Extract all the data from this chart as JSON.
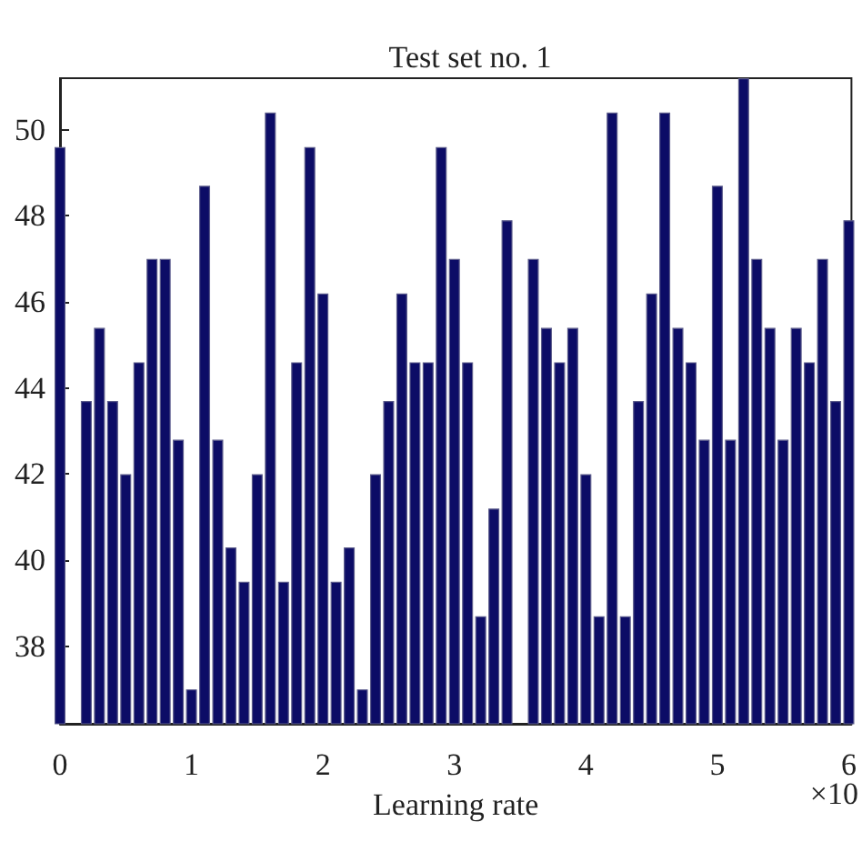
{
  "chart_data": {
    "type": "bar",
    "title": "Test set no. 1",
    "xlabel": "Learning rate",
    "annotations": [
      "×10"
    ],
    "x": [
      0,
      0.1,
      0.2,
      0.3,
      0.4,
      0.5,
      0.6,
      0.7,
      0.8,
      0.9,
      1.0,
      1.1,
      1.2,
      1.3,
      1.4,
      1.5,
      1.6,
      1.7,
      1.8,
      1.9,
      2.0,
      2.1,
      2.2,
      2.3,
      2.4,
      2.5,
      2.6,
      2.7,
      2.8,
      2.9,
      3.0,
      3.1,
      3.2,
      3.3,
      3.4,
      3.5,
      3.6,
      3.7,
      3.8,
      3.9,
      4.0,
      4.1,
      4.2,
      4.3,
      4.4,
      4.5,
      4.6,
      4.7,
      4.8,
      4.9,
      5.0,
      5.1,
      5.2,
      5.3,
      5.4,
      5.5,
      5.6,
      5.7,
      5.8,
      5.9,
      6.0
    ],
    "values": [
      49.6,
      null,
      43.7,
      45.4,
      43.7,
      42.0,
      44.6,
      47.0,
      47.0,
      42.8,
      37.0,
      48.7,
      42.8,
      40.3,
      39.5,
      42.0,
      50.4,
      39.5,
      44.6,
      49.6,
      46.2,
      39.5,
      40.3,
      37.0,
      42.0,
      43.7,
      46.2,
      44.6,
      44.6,
      49.6,
      47.0,
      44.6,
      38.7,
      41.2,
      47.9,
      null,
      47.0,
      45.4,
      44.6,
      45.4,
      42.0,
      38.7,
      50.4,
      38.7,
      43.7,
      46.2,
      50.4,
      45.4,
      44.6,
      42.8,
      48.7,
      42.8,
      51.2,
      47.0,
      45.4,
      42.8,
      45.4,
      44.6,
      47.0,
      43.7,
      47.9
    ],
    "color": "#0c0c66",
    "xlim": [
      0,
      6.02
    ],
    "xticks": [
      0,
      1,
      2,
      3,
      4,
      5,
      6
    ],
    "ylim": [
      36.2,
      51.2
    ],
    "yticks": [
      38,
      40,
      42,
      44,
      46,
      48,
      50
    ],
    "grid": false
  }
}
